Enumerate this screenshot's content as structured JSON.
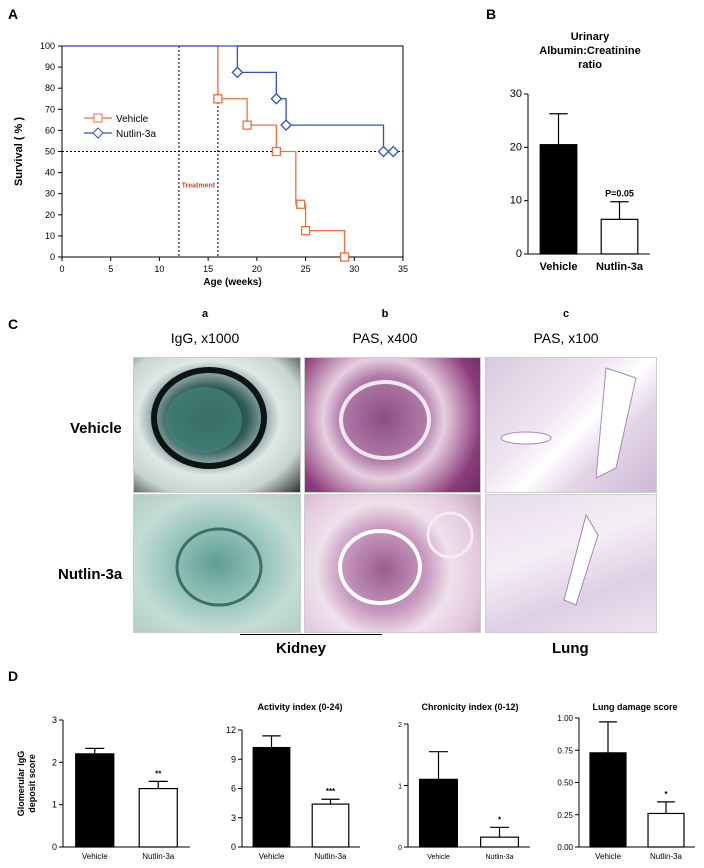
{
  "panel_letters": {
    "a": "A",
    "b": "B",
    "c": "C",
    "d": "D"
  },
  "panel_c": {
    "subletters": [
      "a",
      "b",
      "c"
    ],
    "col_titles": [
      "IgG, x1000",
      "PAS, x400",
      "PAS, x100"
    ],
    "row_labels": [
      "Vehicle",
      "Nutlin-3a"
    ],
    "organ_labels": [
      "Kidney",
      "Lung"
    ]
  },
  "colors": {
    "vehicle_line": "#f07040",
    "nutlin_line": "#3050c0",
    "bar_vehicle": "#000000",
    "bar_nutlin": "#ffffff"
  },
  "chart_data": [
    {
      "id": "A",
      "type": "line",
      "subtype": "kaplan-meier",
      "xlabel": "Age (weeks)",
      "ylabel": "Survival ( % )",
      "xlim": [
        0,
        35
      ],
      "ylim": [
        0,
        100
      ],
      "xticks": [
        0,
        5,
        10,
        15,
        20,
        25,
        30,
        35
      ],
      "yticks": [
        0,
        10,
        20,
        30,
        40,
        50,
        60,
        70,
        80,
        90,
        100
      ],
      "legend_position": "left-middle",
      "annotation": "Treatment",
      "reference_lines": {
        "x": [
          12,
          16
        ],
        "y": [
          50
        ]
      },
      "series": [
        {
          "name": "Vehicle",
          "color": "#f07040",
          "marker": "square",
          "x": [
            0,
            16,
            16,
            19,
            19,
            22,
            22,
            24,
            24,
            25,
            25,
            29,
            29
          ],
          "y": [
            100,
            100,
            75,
            75,
            62.5,
            62.5,
            50,
            50,
            25,
            25,
            12.5,
            12.5,
            0
          ],
          "markers": [
            [
              16,
              75
            ],
            [
              19,
              62.5
            ],
            [
              22,
              50
            ],
            [
              24.5,
              25
            ],
            [
              25,
              12.5
            ],
            [
              29,
              0
            ]
          ]
        },
        {
          "name": "Nutlin-3a",
          "color": "#3050c0",
          "marker": "diamond",
          "x": [
            0,
            18,
            18,
            22,
            22,
            23,
            23,
            33,
            33,
            34
          ],
          "y": [
            100,
            100,
            87.5,
            87.5,
            75,
            75,
            62.5,
            62.5,
            50,
            50
          ],
          "markers": [
            [
              18,
              87.5
            ],
            [
              22,
              75
            ],
            [
              23,
              62.5
            ],
            [
              33,
              50
            ],
            [
              34,
              50
            ]
          ]
        }
      ]
    },
    {
      "id": "B",
      "type": "bar",
      "title": "Urinary Albumin:Creatinine ratio",
      "categories": [
        "Vehicle",
        "Nutlin-3a"
      ],
      "values": [
        20.5,
        6.5
      ],
      "errors": [
        5.8,
        3.3
      ],
      "ylim": [
        0,
        30
      ],
      "yticks": [
        0,
        10,
        20,
        30
      ],
      "annotations": [
        "",
        "P=0.05"
      ]
    },
    {
      "id": "D1",
      "type": "bar",
      "ylabel": "Glomerular IgG deposit score",
      "categories": [
        "Vehicle",
        "Nutlin-3a"
      ],
      "values": [
        2.2,
        1.38
      ],
      "errors": [
        0.13,
        0.17
      ],
      "ylim": [
        0,
        3
      ],
      "yticks": [
        0,
        1,
        2,
        3
      ],
      "annotations": [
        "",
        "**"
      ]
    },
    {
      "id": "D2",
      "type": "bar",
      "title": "Activity index (0-24)",
      "categories": [
        "Vehicle",
        "Nutlin-3a"
      ],
      "values": [
        10.2,
        4.4
      ],
      "errors": [
        1.2,
        0.5
      ],
      "ylim": [
        0,
        12
      ],
      "yticks": [
        0,
        3,
        6,
        9,
        12
      ],
      "annotations": [
        "",
        "***"
      ]
    },
    {
      "id": "D3",
      "type": "bar",
      "title": "Chronicity index (0-12)",
      "categories": [
        "Vehicle",
        "Nutlin-3a"
      ],
      "values": [
        1.1,
        0.16
      ],
      "errors": [
        0.45,
        0.16
      ],
      "ylim": [
        0,
        2
      ],
      "yticks": [
        0,
        1,
        2
      ],
      "annotations": [
        "",
        "*"
      ]
    },
    {
      "id": "D4",
      "type": "bar",
      "title": "Lung damage score",
      "categories": [
        "Vehicle",
        "Nutlin-3a"
      ],
      "values": [
        0.73,
        0.26
      ],
      "errors": [
        0.24,
        0.09
      ],
      "ylim": [
        0,
        1
      ],
      "yticks": [
        "0.00",
        "0.25",
        "0.50",
        "0.75",
        "1.00"
      ],
      "annotations": [
        "",
        "*"
      ]
    }
  ]
}
